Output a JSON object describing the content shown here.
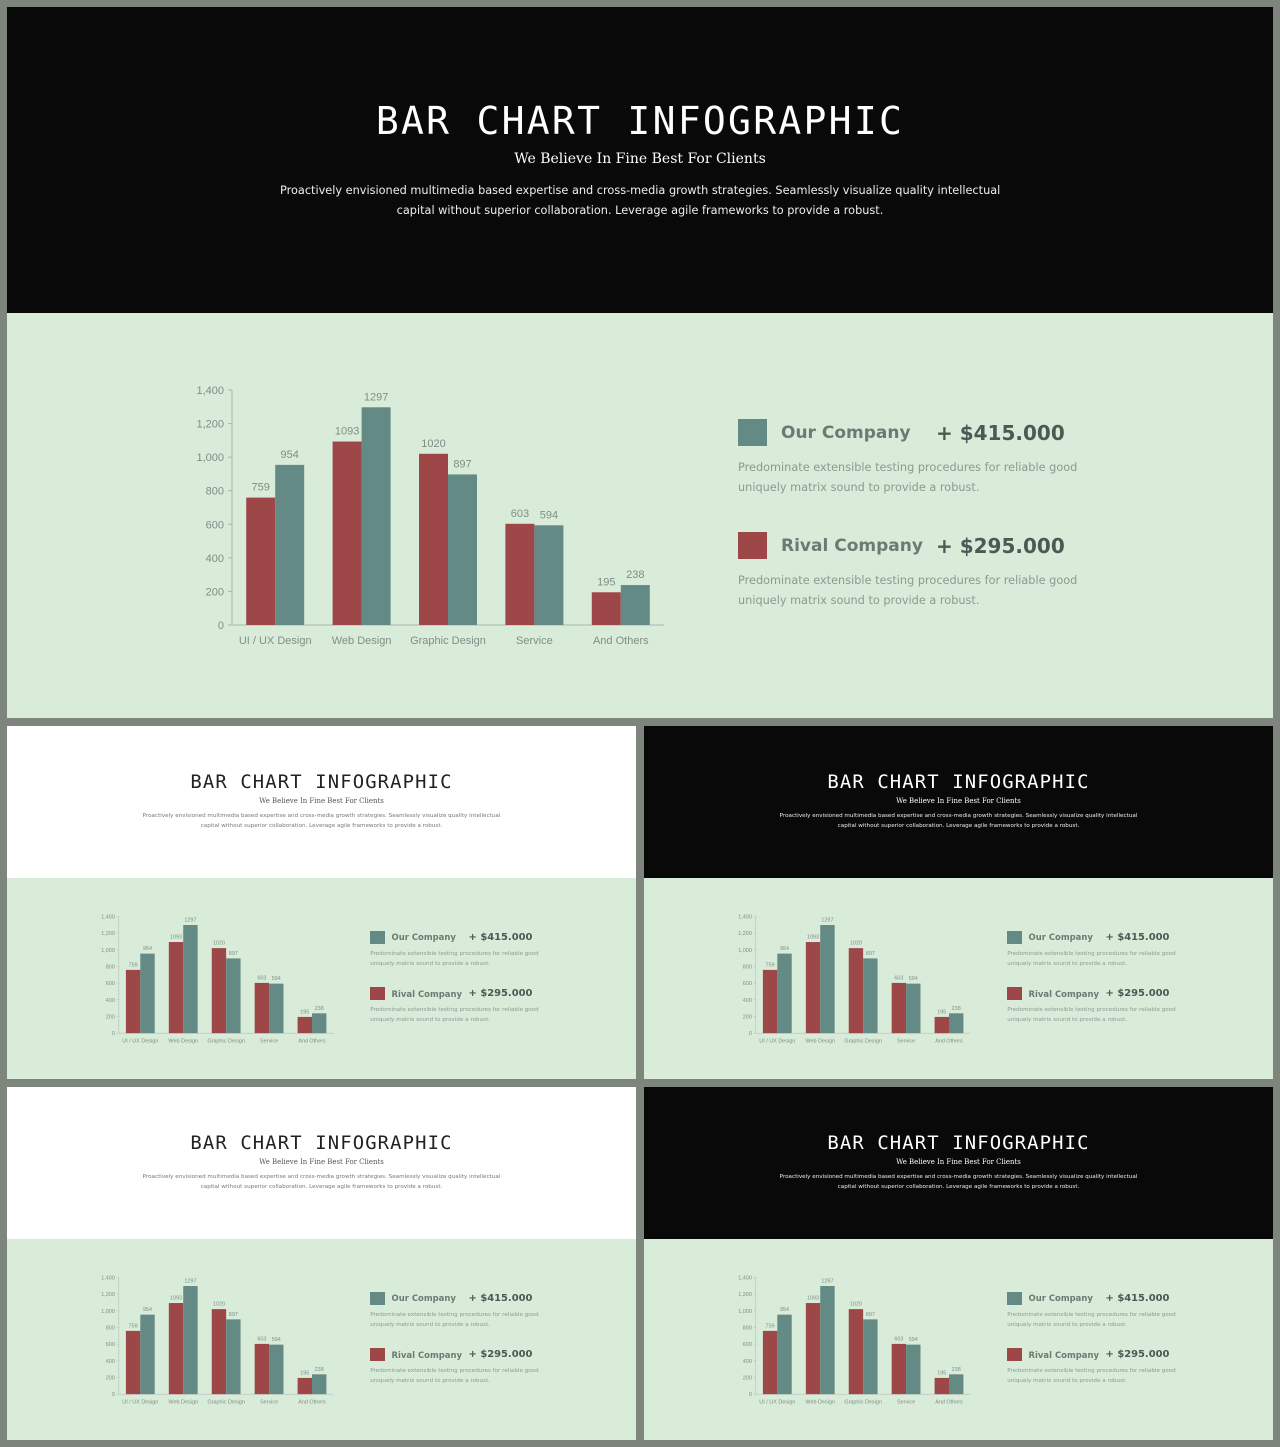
{
  "slide": {
    "title": "BAR CHART INFOGRAPHIC",
    "subtitle": "We Believe In Fine Best For Clients",
    "description_line1": "Proactively envisioned multimedia based expertise and cross-media growth strategies. Seamlessly visualize quality intellectual",
    "description_line2": "capital without superior collaboration. Leverage agile frameworks to  provide a robust."
  },
  "legend": [
    {
      "name": "Our Company",
      "value": "+ $415.000",
      "desc_line1": "Predominate extensible testing procedures for reliable good",
      "desc_line2": "uniquely matrix sound to provide a robust.",
      "color": "#648a85"
    },
    {
      "name": "Rival Company",
      "value": "+ $295.000",
      "desc_line1": "Predominate extensible testing procedures for reliable good",
      "desc_line2": "uniquely matrix sound to provide a robust.",
      "color": "#9e4749"
    }
  ],
  "colors": {
    "dark_header": "#090909",
    "light_header": "#ffffff",
    "body_background": "#d9ecd9",
    "frame": "#7d857d"
  },
  "chart_data": {
    "type": "bar",
    "categories": [
      "UI / UX Design",
      "Web Design",
      "Graphic Design",
      "Service",
      "And Others"
    ],
    "series": [
      {
        "name": "Rival Company",
        "values": [
          759,
          1093,
          1020,
          603,
          195
        ],
        "color": "#9e4749"
      },
      {
        "name": "Our Company",
        "values": [
          954,
          1297,
          897,
          594,
          238
        ],
        "color": "#648a85"
      }
    ],
    "ylim": [
      0,
      1400
    ],
    "yticks": [
      "0",
      "200",
      "400",
      "600",
      "800",
      "1,000",
      "1,200",
      "1,400"
    ],
    "data_labels": [
      [
        "759",
        "1093",
        "1020",
        "603",
        "195"
      ],
      [
        "954",
        "1297",
        "897",
        "594",
        "238"
      ]
    ],
    "grid": false,
    "legend_position": "right"
  }
}
